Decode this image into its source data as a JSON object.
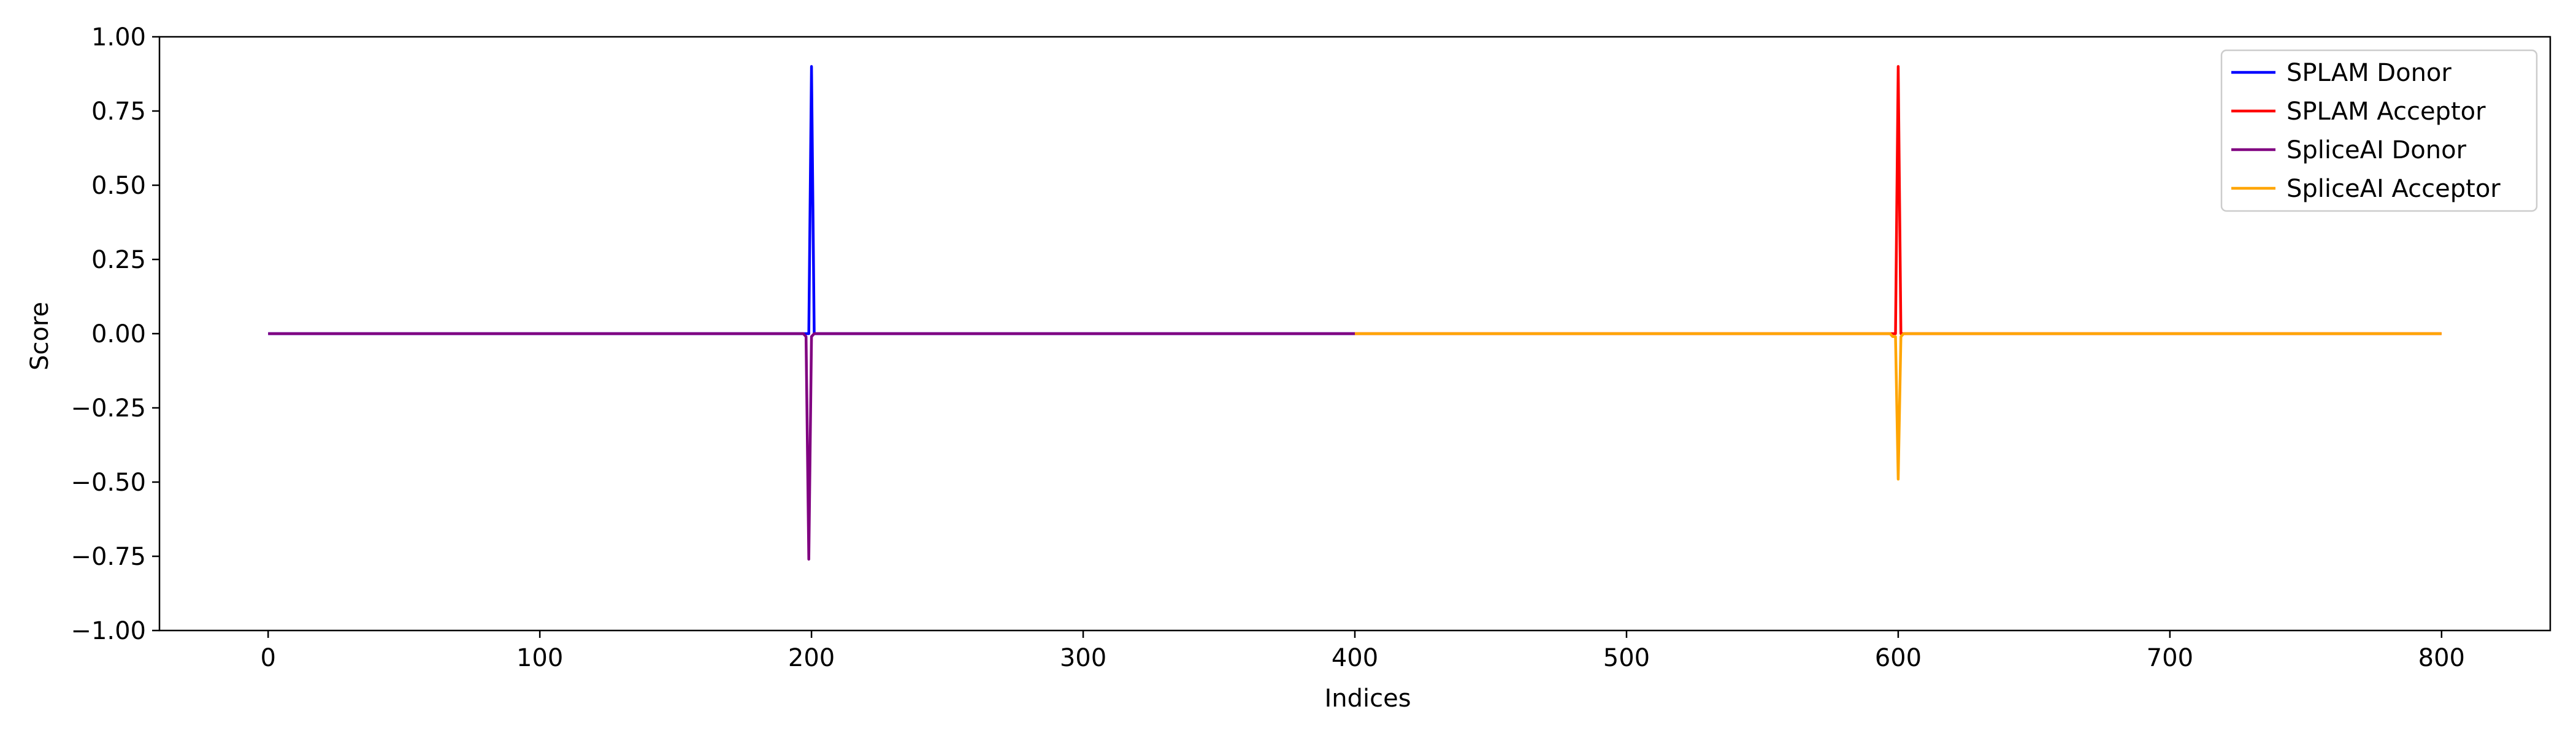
{
  "chart_data": {
    "type": "line",
    "title": "",
    "xlabel": "Indices",
    "ylabel": "Score",
    "xlim": [
      -40,
      840
    ],
    "ylim": [
      -1.0,
      1.0
    ],
    "xticks": [
      0,
      100,
      200,
      300,
      400,
      500,
      600,
      700,
      800
    ],
    "xtick_labels": [
      "0",
      "100",
      "200",
      "300",
      "400",
      "500",
      "600",
      "700",
      "800"
    ],
    "yticks": [
      1.0,
      0.75,
      0.5,
      0.25,
      0.0,
      -0.25,
      -0.5,
      -0.75,
      -1.0
    ],
    "ytick_labels": [
      "1.00",
      "0.75",
      "0.50",
      "0.25",
      "0.00",
      "−0.25",
      "−0.50",
      "−0.75",
      "−1.00"
    ],
    "grid": false,
    "legend_position": "top-right",
    "series": [
      {
        "name": "SPLAM Donor",
        "color": "#0000ff",
        "x": [
          0,
          198,
          199,
          200,
          201,
          202,
          400
        ],
        "y": [
          0,
          0,
          0,
          0.9,
          0,
          0,
          0
        ]
      },
      {
        "name": "SPLAM Acceptor",
        "color": "#ff0000",
        "x": [
          400,
          598,
          599,
          600,
          601,
          602,
          800
        ],
        "y": [
          0,
          0,
          0,
          0.9,
          0,
          0,
          0
        ]
      },
      {
        "name": "SpliceAI Donor",
        "color": "#800080",
        "x": [
          0,
          196,
          197,
          198,
          199,
          200,
          201,
          202,
          400
        ],
        "y": [
          0,
          0,
          0,
          -0.01,
          -0.76,
          -0.01,
          0,
          0,
          0
        ]
      },
      {
        "name": "SpliceAI Acceptor",
        "color": "#ffa500",
        "x": [
          400,
          597,
          598,
          599,
          600,
          601,
          602,
          800
        ],
        "y": [
          0,
          0,
          -0.01,
          -0.01,
          -0.49,
          -0.01,
          0,
          0
        ]
      }
    ]
  }
}
